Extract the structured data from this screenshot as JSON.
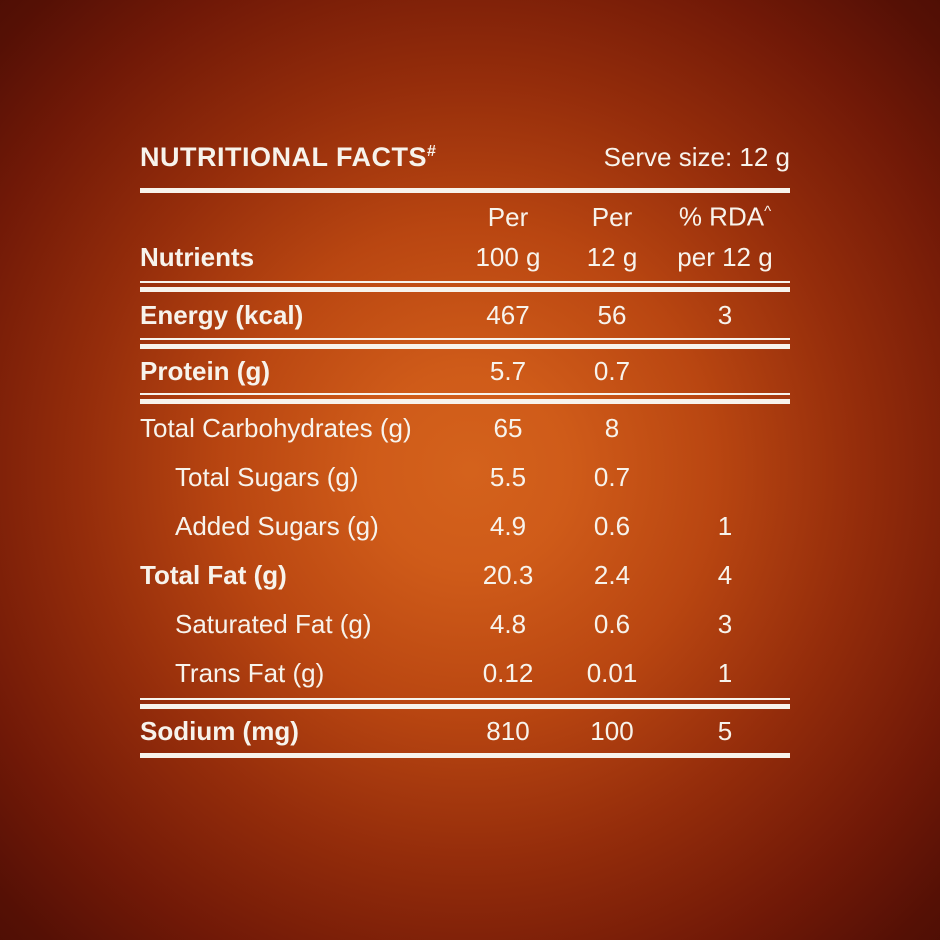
{
  "label": {
    "title": "NUTRITIONAL FACTS",
    "title_note_mark": "#",
    "serve_size": "Serve size: 12 g",
    "nutrients_column_label": "Nutrients",
    "columns": [
      {
        "line1": "Per",
        "line2": "100 g"
      },
      {
        "line1": "Per",
        "line2": "12 g"
      },
      {
        "line1": "% RDA",
        "note_mark": "^",
        "line2": "per 12 g"
      }
    ],
    "rows": [
      {
        "label": "Energy (kcal)",
        "per_100g": "467",
        "per_12g": "56",
        "pct_rda": "3"
      },
      {
        "label": "Protein (g)",
        "per_100g": "5.7",
        "per_12g": "0.7",
        "pct_rda": ""
      },
      {
        "label": "Total Carbohydrates (g)",
        "per_100g": "65",
        "per_12g": "8",
        "pct_rda": ""
      },
      {
        "label": "Total Sugars (g)",
        "per_100g": "5.5",
        "per_12g": "0.7",
        "pct_rda": ""
      },
      {
        "label": "Added Sugars (g)",
        "per_100g": "4.9",
        "per_12g": "0.6",
        "pct_rda": "1"
      },
      {
        "label": "Total Fat (g)",
        "per_100g": "20.3",
        "per_12g": "2.4",
        "pct_rda": "4"
      },
      {
        "label": "Saturated Fat (g)",
        "per_100g": "4.8",
        "per_12g": "0.6",
        "pct_rda": "3"
      },
      {
        "label": "Trans Fat (g)",
        "per_100g": "0.12",
        "per_12g": "0.01",
        "pct_rda": "1"
      },
      {
        "label": "Sodium (mg)",
        "per_100g": "810",
        "per_12g": "100",
        "pct_rda": "5"
      }
    ]
  },
  "colors": {
    "text": "#f7f3ec",
    "background_center": "#d4621c",
    "background_edge": "#470c04"
  }
}
